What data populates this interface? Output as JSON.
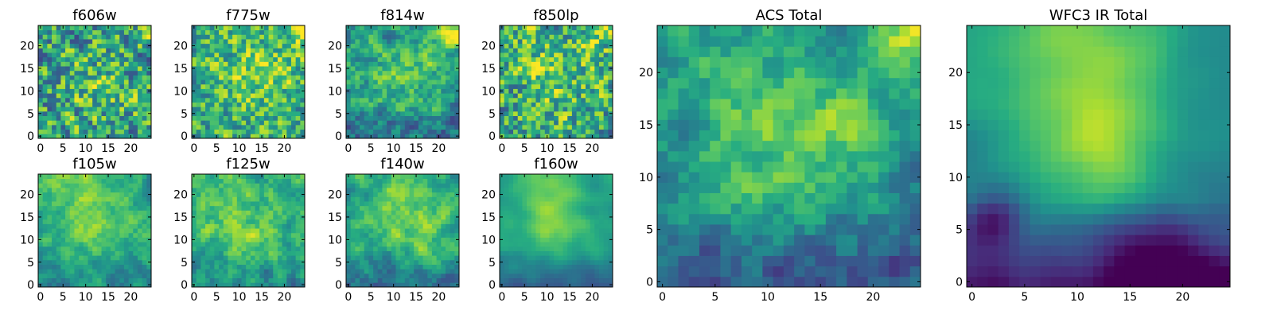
{
  "chart_data": [
    {
      "type": "heatmap",
      "title": "f606w",
      "seed": 11,
      "bias": 0.58,
      "variance": 0.42,
      "smooth": 0.25,
      "hotspots": [
        [
          13,
          11,
          5,
          0.15
        ],
        [
          23,
          23,
          2,
          0.2
        ]
      ],
      "xlim": [
        0,
        24
      ],
      "ylim": [
        0,
        24
      ],
      "xticks": [
        0,
        5,
        10,
        15,
        20
      ],
      "yticks": [
        0,
        5,
        10,
        15,
        20
      ],
      "colormap": "viridis"
    },
    {
      "type": "heatmap",
      "title": "f775w",
      "seed": 23,
      "bias": 0.62,
      "variance": 0.38,
      "smooth": 0.35,
      "hotspots": [
        [
          14,
          14,
          6,
          0.18
        ],
        [
          24,
          24,
          3,
          0.25
        ]
      ],
      "xlim": [
        0,
        24
      ],
      "ylim": [
        0,
        24
      ],
      "xticks": [
        0,
        5,
        10,
        15,
        20
      ],
      "yticks": [
        0,
        5,
        10,
        15,
        20
      ],
      "colormap": "viridis"
    },
    {
      "type": "heatmap",
      "title": "f814w",
      "seed": 37,
      "bias": 0.55,
      "variance": 0.4,
      "smooth": 0.4,
      "hotspots": [
        [
          12,
          13,
          6,
          0.15
        ],
        [
          23,
          24,
          3,
          0.3
        ]
      ],
      "bottom_dim": 0.2,
      "xlim": [
        0,
        24
      ],
      "ylim": [
        0,
        24
      ],
      "xticks": [
        0,
        5,
        10,
        15,
        20
      ],
      "yticks": [
        0,
        5,
        10,
        15,
        20
      ],
      "colormap": "viridis"
    },
    {
      "type": "heatmap",
      "title": "f850lp",
      "seed": 41,
      "bias": 0.6,
      "variance": 0.42,
      "smooth": 0.3,
      "hotspots": [
        [
          12,
          14,
          6,
          0.15
        ],
        [
          22,
          24,
          3,
          0.25
        ]
      ],
      "xlim": [
        0,
        24
      ],
      "ylim": [
        0,
        24
      ],
      "xticks": [
        0,
        5,
        10,
        15,
        20
      ],
      "yticks": [
        0,
        5,
        10,
        15,
        20
      ],
      "colormap": "viridis"
    },
    {
      "type": "heatmap",
      "title": "f105w",
      "seed": 53,
      "bias": 0.6,
      "variance": 0.32,
      "smooth": 0.55,
      "hotspots": [
        [
          12,
          13,
          6,
          0.15
        ],
        [
          8,
          22,
          5,
          0.15
        ]
      ],
      "bottom_dim": 0.15,
      "xlim": [
        0,
        24
      ],
      "ylim": [
        0,
        24
      ],
      "xticks": [
        0,
        5,
        10,
        15,
        20
      ],
      "yticks": [
        0,
        5,
        10,
        15,
        20
      ],
      "colormap": "viridis"
    },
    {
      "type": "heatmap",
      "title": "f125w",
      "seed": 67,
      "bias": 0.6,
      "variance": 0.35,
      "smooth": 0.5,
      "hotspots": [
        [
          12,
          12,
          6,
          0.15
        ],
        [
          6,
          22,
          5,
          0.12
        ]
      ],
      "bottom_dim": 0.12,
      "xlim": [
        0,
        24
      ],
      "ylim": [
        0,
        24
      ],
      "xticks": [
        0,
        5,
        10,
        15,
        20
      ],
      "yticks": [
        0,
        5,
        10,
        15,
        20
      ],
      "colormap": "viridis"
    },
    {
      "type": "heatmap",
      "title": "f140w",
      "seed": 79,
      "bias": 0.58,
      "variance": 0.35,
      "smooth": 0.55,
      "hotspots": [
        [
          12,
          18,
          6,
          0.15
        ],
        [
          14,
          12,
          5,
          0.12
        ]
      ],
      "bottom_dim": 0.2,
      "xlim": [
        0,
        24
      ],
      "ylim": [
        0,
        24
      ],
      "xticks": [
        0,
        5,
        10,
        15,
        20
      ],
      "yticks": [
        0,
        5,
        10,
        15,
        20
      ],
      "colormap": "viridis"
    },
    {
      "type": "heatmap",
      "title": "f160w",
      "seed": 97,
      "bias": 0.55,
      "variance": 0.25,
      "smooth": 0.7,
      "hotspots": [
        [
          12,
          14,
          5,
          0.22
        ],
        [
          10,
          21,
          5,
          0.18
        ]
      ],
      "bottom_dim": 0.25,
      "xlim": [
        0,
        24
      ],
      "ylim": [
        0,
        24
      ],
      "xticks": [
        0,
        5,
        10,
        15,
        20
      ],
      "yticks": [
        0,
        5,
        10,
        15,
        20
      ],
      "colormap": "viridis"
    },
    {
      "type": "heatmap",
      "title": "ACS Total",
      "seed": 113,
      "bias": 0.5,
      "variance": 0.3,
      "smooth": 0.45,
      "hotspots": [
        [
          12,
          12,
          5,
          0.25
        ],
        [
          23,
          23,
          3,
          0.35
        ],
        [
          18,
          15,
          2,
          0.2
        ],
        [
          7,
          20,
          5,
          0.12
        ]
      ],
      "bottom_dim": 0.25,
      "xlim": [
        0,
        24
      ],
      "ylim": [
        0,
        24
      ],
      "xticks": [
        0,
        5,
        10,
        15,
        20
      ],
      "yticks": [
        0,
        5,
        10,
        15,
        20
      ],
      "colormap": "viridis"
    },
    {
      "type": "heatmap",
      "title": "WFC3 IR Total",
      "seed": 131,
      "bias": 0.45,
      "variance": 0.18,
      "smooth": 0.8,
      "hotspots": [
        [
          10,
          22,
          7,
          0.35
        ],
        [
          12,
          12,
          4,
          0.3
        ]
      ],
      "bottom_dim": 0.35,
      "cold_spots": [
        [
          2,
          6,
          2,
          0.35
        ],
        [
          18,
          1,
          4,
          0.3
        ]
      ],
      "xlim": [
        0,
        24
      ],
      "ylim": [
        0,
        24
      ],
      "xticks": [
        0,
        5,
        10,
        15,
        20
      ],
      "yticks": [
        0,
        5,
        10,
        15,
        20
      ],
      "colormap": "viridis"
    }
  ]
}
